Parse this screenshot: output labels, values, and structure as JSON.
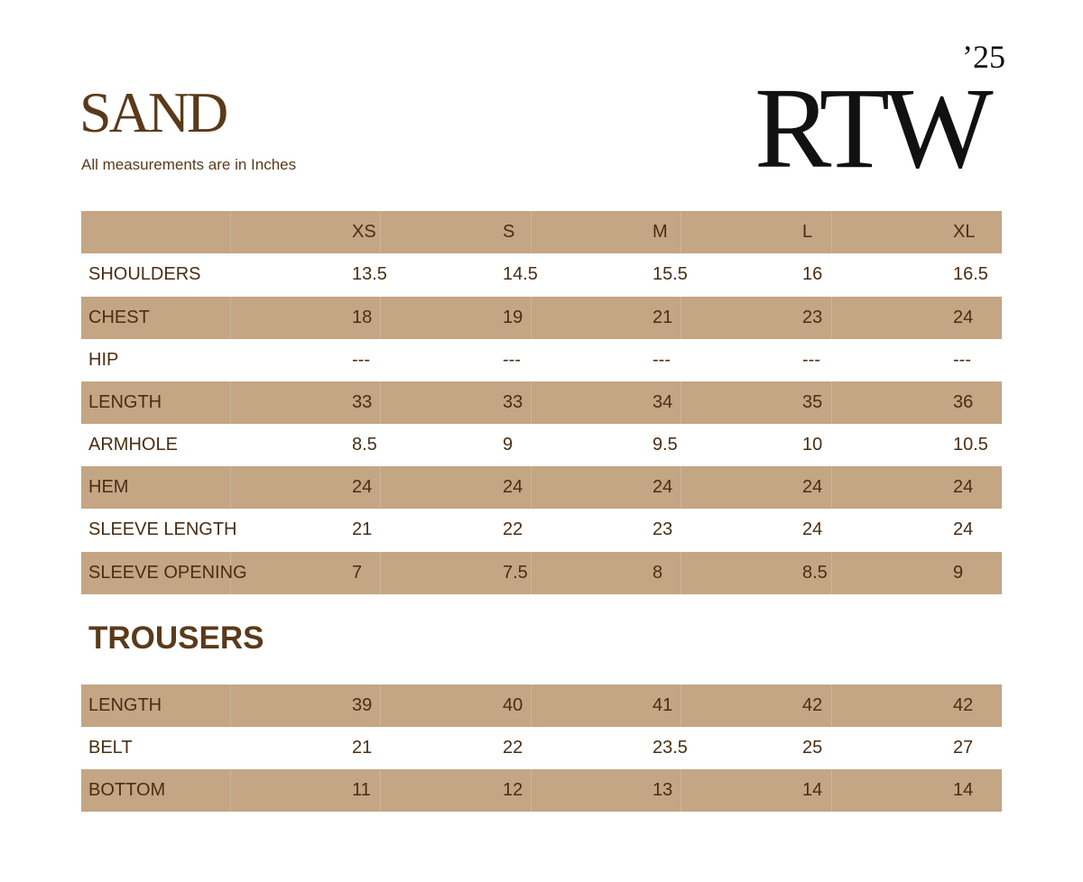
{
  "header": {
    "title": "SAND",
    "subtitle": "All measurements are in Inches",
    "year": "’25",
    "collection": "RTW"
  },
  "table": {
    "columns": [
      "XS",
      "S",
      "M",
      "L",
      "XL"
    ],
    "rows": [
      [
        "SHOULDERS",
        "13.5",
        "14.5",
        "15.5",
        "16",
        "16.5"
      ],
      [
        "CHEST",
        "18",
        "19",
        "21",
        "23",
        "24"
      ],
      [
        "HIP",
        "---",
        "---",
        "---",
        "---",
        "---"
      ],
      [
        "LENGTH",
        "33",
        "33",
        "34",
        "35",
        "36"
      ],
      [
        "ARMHOLE",
        "8.5",
        "9",
        "9.5",
        "10",
        "10.5"
      ],
      [
        "HEM",
        "24",
        "24",
        "24",
        "24",
        "24"
      ],
      [
        "SLEEVE LENGTH",
        "21",
        "22",
        "23",
        "24",
        "24"
      ],
      [
        "SLEEVE OPENING",
        "7",
        "7.5",
        "8",
        "8.5",
        "9"
      ]
    ]
  },
  "trousers": {
    "title": "TROUSERS",
    "rows": [
      [
        "LENGTH",
        "39",
        "40",
        "41",
        "42",
        "42"
      ],
      [
        "BELT",
        "21",
        "22",
        "23.5",
        "25",
        "27"
      ],
      [
        "BOTTOM",
        "11",
        "12",
        "13",
        "14",
        "14"
      ]
    ]
  }
}
